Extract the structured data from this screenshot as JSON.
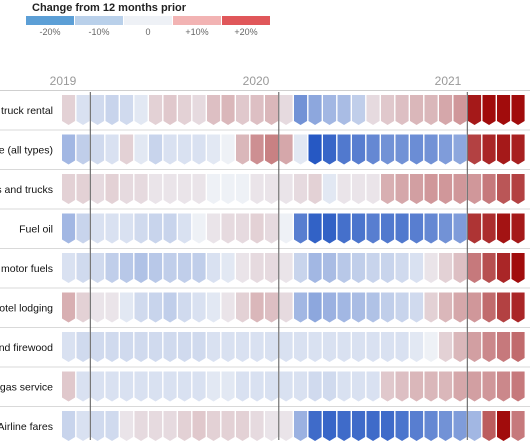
{
  "legend": {
    "title": "Change from 12 months prior",
    "labels": [
      "-20%",
      "-10%",
      "0",
      "+10%",
      "+20%"
    ],
    "colors": [
      "#5c9fd6",
      "#b9d0ea",
      "#eef1f6",
      "#f2b3b3",
      "#e0575a"
    ]
  },
  "chart_data": {
    "type": "heatmap",
    "title": "",
    "x_axis_year_labels": [
      "2019",
      "2020",
      "2021"
    ],
    "color_scale": {
      "domain": [
        -30,
        0,
        30
      ],
      "negative_color": "#1a4fc0",
      "neutral_color": "#eef1f6",
      "positive_color": "#a10c0c",
      "unit": "% change from 12 months prior"
    },
    "rows": [
      {
        "label": "nd truck rental",
        "values": [
          3,
          -2,
          -3,
          -4,
          -3,
          -1,
          3,
          4,
          3,
          2,
          5,
          6,
          4,
          5,
          6,
          2,
          -16,
          -12,
          -9,
          -8,
          -5,
          2,
          4,
          5,
          6,
          6,
          8,
          10,
          28,
          33,
          38,
          34
        ]
      },
      {
        "label": "line (all types)",
        "values": [
          -9,
          -5,
          -3,
          -2,
          3,
          -1,
          -4,
          -2,
          -2,
          -2,
          -1,
          0,
          6,
          11,
          13,
          8,
          -1,
          -28,
          -25,
          -21,
          -20,
          -18,
          -16,
          -16,
          -17,
          -16,
          -14,
          -12,
          22,
          26,
          28,
          27
        ]
      },
      {
        "label": "ars and trucks",
        "values": [
          3,
          3,
          2,
          3,
          2,
          2,
          1,
          1,
          1,
          1,
          0,
          0,
          0,
          1,
          1,
          1,
          2,
          3,
          -1,
          1,
          1,
          1,
          7,
          8,
          9,
          10,
          10,
          10,
          10,
          14,
          19,
          22
        ]
      },
      {
        "label": "Fuel oil",
        "values": [
          -9,
          -4,
          -2,
          -2,
          -2,
          -3,
          -4,
          -4,
          -2,
          0,
          1,
          2,
          2,
          3,
          2,
          0,
          -20,
          -26,
          -26,
          -23,
          -22,
          -20,
          -21,
          -21,
          -20,
          -18,
          -16,
          -14,
          24,
          25,
          29,
          28
        ]
      },
      {
        "label": "er motor fuels",
        "values": [
          -2,
          -3,
          -3,
          -5,
          -6,
          -7,
          -6,
          -5,
          -5,
          -5,
          -2,
          -1,
          1,
          2,
          2,
          1,
          -4,
          -9,
          -8,
          -6,
          -5,
          -4,
          -4,
          -3,
          -2,
          1,
          3,
          5,
          14,
          20,
          26,
          30
        ]
      },
      {
        "label": "Hotel lodging",
        "values": [
          7,
          3,
          1,
          1,
          -1,
          -3,
          -4,
          -5,
          -3,
          -2,
          -1,
          1,
          3,
          6,
          5,
          2,
          -9,
          -12,
          -10,
          -9,
          -8,
          -7,
          -5,
          -4,
          -3,
          3,
          6,
          8,
          10,
          16,
          22,
          26
        ]
      },
      {
        "label": "e and firewood",
        "values": [
          -2,
          -3,
          -3,
          -3,
          -3,
          -3,
          -3,
          -3,
          -3,
          -3,
          -2,
          -2,
          -2,
          -2,
          -2,
          -2,
          -2,
          -2,
          -2,
          -2,
          -2,
          -2,
          -2,
          -2,
          -1,
          0,
          3,
          6,
          9,
          12,
          14,
          16
        ]
      },
      {
        "label": "ity gas service",
        "values": [
          4,
          -2,
          -2,
          -2,
          -2,
          -2,
          -2,
          -2,
          -2,
          -2,
          -1,
          -1,
          -2,
          -2,
          -2,
          -2,
          -2,
          -3,
          -3,
          -2,
          -2,
          -2,
          4,
          5,
          6,
          6,
          6,
          8,
          9,
          10,
          12,
          14
        ]
      },
      {
        "label": "Airline fares",
        "values": [
          -4,
          -2,
          -3,
          -3,
          1,
          2,
          2,
          2,
          3,
          4,
          3,
          3,
          3,
          2,
          1,
          1,
          -10,
          -24,
          -25,
          -24,
          -24,
          -24,
          -24,
          -22,
          -20,
          -18,
          -16,
          -14,
          -9,
          18,
          30,
          14
        ]
      }
    ]
  }
}
